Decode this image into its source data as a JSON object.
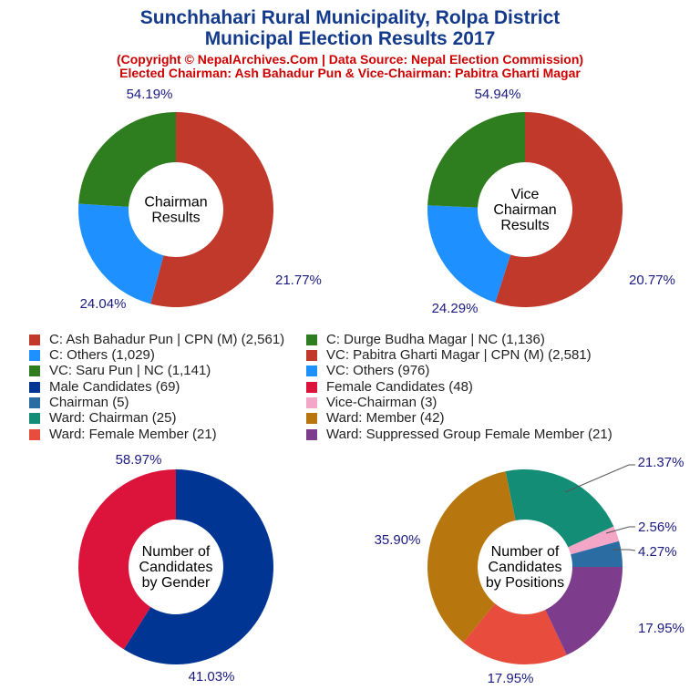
{
  "header": {
    "title_line1": "Sunchhahari Rural Municipality, Rolpa District",
    "title_line2": "Municipal Election Results 2017",
    "source": "(Copyright © NepalArchives.Com | Data Source: Nepal Election Commission)",
    "elected": "Elected Chairman: Ash Bahadur Pun & Vice-Chairman: Pabitra Gharti Magar"
  },
  "legend": [
    {
      "label": "C: Ash Bahadur Pun | CPN (M) (2,561)",
      "color": "#c0392b"
    },
    {
      "label": "C: Durge Budha Magar | NC (1,136)",
      "color": "#2e7d1e"
    },
    {
      "label": "C: Others (1,029)",
      "color": "#1e90ff"
    },
    {
      "label": "VC: Pabitra Gharti Magar | CPN (M) (2,581)",
      "color": "#c0392b"
    },
    {
      "label": "VC: Saru Pun | NC (1,141)",
      "color": "#2e7d1e"
    },
    {
      "label": "VC: Others (976)",
      "color": "#1e90ff"
    },
    {
      "label": "Male Candidates (69)",
      "color": "#003594"
    },
    {
      "label": "Female Candidates (48)",
      "color": "#dc143c"
    },
    {
      "label": "Chairman (5)",
      "color": "#2b6ca3"
    },
    {
      "label": "Vice-Chairman (3)",
      "color": "#f4a6c6"
    },
    {
      "label": "Ward: Chairman (25)",
      "color": "#138d75"
    },
    {
      "label": "Ward: Member (42)",
      "color": "#b8760f"
    },
    {
      "label": "Ward: Female Member (21)",
      "color": "#e74c3c"
    },
    {
      "label": "Ward: Suppressed Group Female Member (21)",
      "color": "#7d3c8c"
    }
  ],
  "chart_data": [
    {
      "type": "pie",
      "center_label": [
        "Chairman",
        "Results"
      ],
      "slices": [
        {
          "name": "C: Ash Bahadur Pun | CPN (M)",
          "value": 2561,
          "pct_label": "54.19%",
          "color": "#c0392b"
        },
        {
          "name": "C: Others",
          "value": 1029,
          "pct_label": "21.77%",
          "color": "#1e90ff"
        },
        {
          "name": "C: Durge Budha Magar | NC",
          "value": 1136,
          "pct_label": "24.04%",
          "color": "#2e7d1e"
        }
      ]
    },
    {
      "type": "pie",
      "center_label": [
        "Vice",
        "Chairman",
        "Results"
      ],
      "slices": [
        {
          "name": "VC: Pabitra Gharti Magar | CPN (M)",
          "value": 2581,
          "pct_label": "54.94%",
          "color": "#c0392b"
        },
        {
          "name": "VC: Others",
          "value": 976,
          "pct_label": "20.77%",
          "color": "#1e90ff"
        },
        {
          "name": "VC: Saru Pun | NC",
          "value": 1141,
          "pct_label": "24.29%",
          "color": "#2e7d1e"
        }
      ]
    },
    {
      "type": "pie",
      "center_label": [
        "Number of",
        "Candidates",
        "by Gender"
      ],
      "slices": [
        {
          "name": "Male Candidates",
          "value": 69,
          "pct_label": "58.97%",
          "color": "#003594"
        },
        {
          "name": "Female Candidates",
          "value": 48,
          "pct_label": "41.03%",
          "color": "#dc143c"
        }
      ]
    },
    {
      "type": "pie",
      "center_label": [
        "Number of",
        "Candidates",
        "by Positions"
      ],
      "slices": [
        {
          "name": "Chairman",
          "value": 5,
          "pct_label": "4.27%",
          "color": "#2b6ca3"
        },
        {
          "name": "Vice-Chairman",
          "value": 3,
          "pct_label": "2.56%",
          "color": "#f4a6c6"
        },
        {
          "name": "Ward: Chairman",
          "value": 25,
          "pct_label": "21.37%",
          "color": "#138d75"
        },
        {
          "name": "Ward: Member",
          "value": 42,
          "pct_label": "35.90%",
          "color": "#b8760f"
        },
        {
          "name": "Ward: Female Member",
          "value": 21,
          "pct_label": "17.95%",
          "color": "#e74c3c"
        },
        {
          "name": "Ward: Suppressed Group Female Member",
          "value": 21,
          "pct_label": "17.95%",
          "color": "#7d3c8c"
        }
      ]
    }
  ]
}
